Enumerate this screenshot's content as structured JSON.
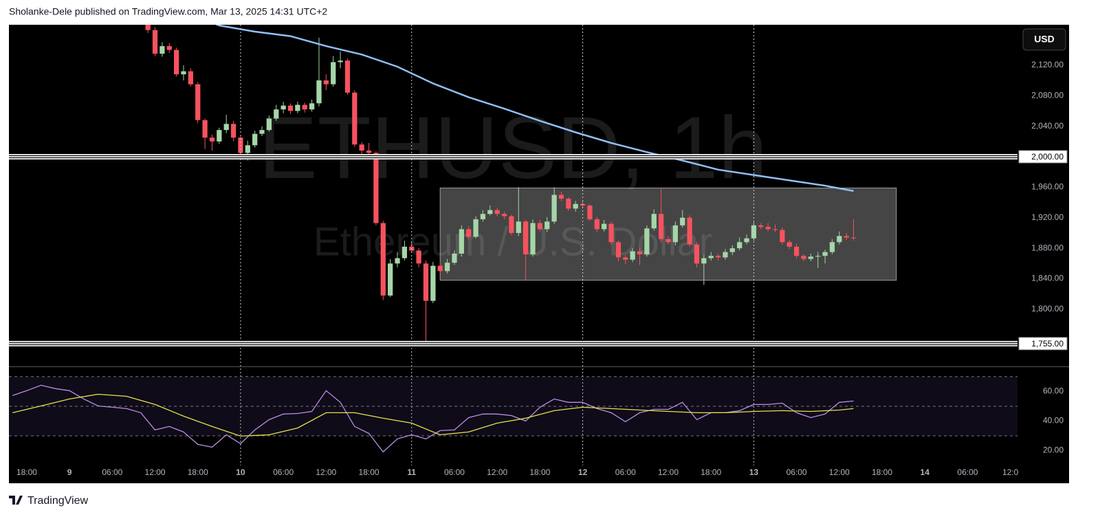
{
  "header": "Sholanke-Dele published on TradingView.com, Mar 13, 2025 14:31 UTC+2",
  "footer": "TradingView",
  "currency_button": "USD",
  "watermark": {
    "symbol": "ETHUSD, 1h",
    "description": "Ethereum / U.S. Dollar"
  },
  "chart_data": [
    {
      "type": "candlestick",
      "xlim": [
        -19.5,
        122
      ],
      "ylim": [
        1726,
        2173
      ],
      "yticks": [
        {
          "value": 1800,
          "label": "1,800.00"
        },
        {
          "value": 1840,
          "label": "1,840.00"
        },
        {
          "value": 1880,
          "label": "1,880.00"
        },
        {
          "value": 1920,
          "label": "1,920.00"
        },
        {
          "value": 1960,
          "label": "1,960.00"
        },
        {
          "value": 2040,
          "label": "2,040.00"
        },
        {
          "value": 2080,
          "label": "2,080.00"
        },
        {
          "value": 2120,
          "label": "2,120.00"
        }
      ],
      "up_color": "#a5d6a7",
      "down_color": "#f7525f",
      "open": [
        2180,
        2166,
        2135,
        2145,
        2140,
        2108,
        2112,
        2095,
        2048,
        2025,
        2020,
        2035,
        2043,
        2025,
        2005,
        2015,
        2030,
        2035,
        2050,
        2062,
        2067,
        2060,
        2068,
        2062,
        2070,
        2100,
        2095,
        2124,
        2126,
        2084,
        2016,
        2008,
        2005,
        1913,
        1818,
        1860,
        1867,
        1882,
        1877,
        1860,
        1811,
        1857,
        1850,
        1861,
        1873,
        1905,
        1895,
        1918,
        1925,
        1930,
        1925,
        1922,
        1900,
        1915,
        1872,
        1913,
        1905,
        1915,
        1950,
        1945,
        1932,
        1938,
        1936,
        1918,
        1905,
        1912,
        1888,
        1868,
        1865,
        1876,
        1872,
        1906,
        1925,
        1892,
        1888,
        1910,
        1920,
        1885,
        1860,
        1867,
        1870,
        1868,
        1875,
        1880,
        1888,
        1893,
        1910,
        1908,
        1905,
        1904,
        1888,
        1882,
        1870,
        1866,
        1869,
        1870,
        1875,
        1888,
        1896,
        1894
      ],
      "high": [
        2186,
        2170,
        2150,
        2149,
        2143,
        2120,
        2116,
        2098,
        2050,
        2029,
        2038,
        2055,
        2047,
        2027,
        2021,
        2034,
        2040,
        2054,
        2068,
        2072,
        2070,
        2072,
        2071,
        2075,
        2156,
        2108,
        2132,
        2138,
        2129,
        2087,
        2019,
        2018,
        2007,
        1916,
        1866,
        1875,
        1890,
        1888,
        1880,
        1864,
        1862,
        1861,
        1866,
        1877,
        1910,
        1909,
        1922,
        1930,
        1936,
        1933,
        1928,
        1924,
        1960,
        1917,
        1918,
        1917,
        1921,
        1960,
        1954,
        1947,
        1942,
        1943,
        1938,
        1921,
        1917,
        1915,
        1890,
        1871,
        1880,
        1881,
        1910,
        1931,
        1958,
        1896,
        1915,
        1930,
        1923,
        1888,
        1871,
        1875,
        1873,
        1879,
        1884,
        1894,
        1898,
        1914,
        1913,
        1913,
        1911,
        1907,
        1891,
        1886,
        1872,
        1873,
        1875,
        1878,
        1892,
        1902,
        1900,
        1918
      ],
      "low": [
        2162,
        2132,
        2131,
        2136,
        2105,
        2100,
        2092,
        2044,
        2010,
        2008,
        2017,
        2031,
        2020,
        2002,
        1995,
        2012,
        2027,
        2033,
        2047,
        2057,
        2056,
        2057,
        2058,
        2059,
        2066,
        2087,
        2092,
        2116,
        2081,
        2013,
        1998,
        2000,
        1910,
        1812,
        1816,
        1855,
        1864,
        1874,
        1855,
        1755,
        1808,
        1845,
        1847,
        1858,
        1869,
        1892,
        1893,
        1915,
        1923,
        1922,
        1918,
        1897,
        1896,
        1838,
        1869,
        1902,
        1901,
        1912,
        1942,
        1929,
        1928,
        1933,
        1916,
        1901,
        1902,
        1885,
        1863,
        1859,
        1862,
        1858,
        1869,
        1903,
        1888,
        1885,
        1884,
        1907,
        1882,
        1855,
        1832,
        1864,
        1864,
        1865,
        1871,
        1877,
        1885,
        1890,
        1905,
        1902,
        1901,
        1885,
        1879,
        1867,
        1863,
        1863,
        1854,
        1860,
        1872,
        1885,
        1891,
        1890
      ],
      "close": [
        2166,
        2135,
        2145,
        2140,
        2108,
        2112,
        2095,
        2048,
        2025,
        2020,
        2035,
        2043,
        2025,
        2005,
        2015,
        2030,
        2035,
        2050,
        2062,
        2067,
        2060,
        2068,
        2062,
        2070,
        2100,
        2095,
        2124,
        2126,
        2084,
        2016,
        2008,
        2005,
        1913,
        1818,
        1860,
        1867,
        1882,
        1877,
        1860,
        1811,
        1857,
        1850,
        1861,
        1873,
        1905,
        1895,
        1918,
        1925,
        1930,
        1925,
        1922,
        1900,
        1915,
        1872,
        1913,
        1905,
        1915,
        1950,
        1945,
        1932,
        1938,
        1936,
        1918,
        1905,
        1912,
        1888,
        1868,
        1865,
        1876,
        1872,
        1906,
        1925,
        1892,
        1888,
        1910,
        1920,
        1885,
        1860,
        1867,
        1870,
        1868,
        1875,
        1880,
        1888,
        1893,
        1910,
        1908,
        1905,
        1904,
        1888,
        1882,
        1870,
        1866,
        1869,
        1870,
        1875,
        1888,
        1896,
        1894,
        1893
      ],
      "ma": {
        "color": "#90bff9",
        "x": [
          8,
          10,
          15,
          20,
          25,
          30,
          35,
          40,
          45,
          50,
          55,
          60,
          65,
          70,
          75,
          80,
          85,
          90,
          95,
          99
        ],
        "values": [
          2180,
          2172,
          2164,
          2158,
          2145,
          2134,
          2118,
          2096,
          2078,
          2063,
          2047,
          2032,
          2018,
          2006,
          1995,
          1983,
          1976,
          1969,
          1962,
          1955
        ]
      },
      "hlines": [
        {
          "value": 2000,
          "label": "2,000.00"
        },
        {
          "value": 1755,
          "label": "1,755.00"
        }
      ],
      "box": {
        "x": [
          41,
          105
        ],
        "y": [
          1838,
          1959
        ]
      },
      "day_separators": [
        13,
        37,
        61,
        85
      ]
    },
    {
      "type": "line",
      "xlim": [
        -19.5,
        122
      ],
      "ylim": [
        10,
        76
      ],
      "yticks": [
        {
          "value": 20,
          "label": "20.00"
        },
        {
          "value": 40,
          "label": "40.00"
        },
        {
          "value": 60,
          "label": "60.00"
        }
      ],
      "levels": [
        30,
        50,
        70
      ],
      "xticks": [
        {
          "value": -17,
          "label": "18:00"
        },
        {
          "value": -11,
          "label": "9"
        },
        {
          "value": -5,
          "label": "06:00"
        },
        {
          "value": 1,
          "label": "12:00"
        },
        {
          "value": 7,
          "label": "18:00"
        },
        {
          "value": 13,
          "label": "10"
        },
        {
          "value": 19,
          "label": "06:00"
        },
        {
          "value": 25,
          "label": "12:00"
        },
        {
          "value": 31,
          "label": "18:00"
        },
        {
          "value": 37,
          "label": "11"
        },
        {
          "value": 43,
          "label": "06:00"
        },
        {
          "value": 49,
          "label": "12:00"
        },
        {
          "value": 55,
          "label": "18:00"
        },
        {
          "value": 61,
          "label": "12"
        },
        {
          "value": 67,
          "label": "06:00"
        },
        {
          "value": 73,
          "label": "12:00"
        },
        {
          "value": 79,
          "label": "18:00"
        },
        {
          "value": 85,
          "label": "13"
        },
        {
          "value": 91,
          "label": "06:00"
        },
        {
          "value": 97,
          "label": "12:00"
        },
        {
          "value": 103,
          "label": "18:00"
        },
        {
          "value": 109,
          "label": "14"
        },
        {
          "value": 115,
          "label": "06:00"
        },
        {
          "value": 121,
          "label": "12:0"
        }
      ],
      "series": [
        {
          "color": "#b98ee8",
          "x": [
            -19,
            -17,
            -15,
            -13,
            -11,
            -9,
            -7,
            -5,
            -3,
            -1,
            1,
            3,
            5,
            7,
            9,
            11,
            13,
            15,
            17,
            19,
            21,
            23,
            25,
            27,
            29,
            31,
            33,
            35,
            37,
            39,
            41,
            43,
            45,
            47,
            49,
            51,
            53,
            55,
            57,
            59,
            61,
            63,
            65,
            67,
            69,
            71,
            73,
            75,
            77,
            79,
            81,
            83,
            85,
            87,
            89,
            91,
            93,
            95,
            97,
            99
          ],
          "values": [
            57.2,
            60.5,
            64.2,
            61.9,
            60.5,
            54.9,
            50.2,
            49.3,
            48.4,
            45.6,
            34.0,
            36.3,
            32.6,
            24.2,
            22.3,
            30.7,
            24.7,
            34.0,
            40.9,
            44.7,
            45.1,
            46.5,
            60.5,
            52.6,
            36.3,
            31.6,
            19.1,
            27.9,
            30.7,
            27.9,
            33.5,
            34.0,
            42.3,
            44.7,
            44.7,
            43.7,
            40.0,
            49.3,
            54.9,
            52.6,
            52.6,
            48.4,
            45.6,
            39.5,
            45.6,
            47.9,
            47.9,
            52.6,
            40.9,
            45.6,
            45.6,
            47.0,
            51.2,
            51.2,
            52.1,
            45.6,
            42.3,
            44.7,
            52.6,
            53.5
          ]
        },
        {
          "color": "#e8e34a",
          "x": [
            -19,
            -15,
            -11,
            -7,
            -3,
            1,
            5,
            9,
            13,
            17,
            21,
            25,
            29,
            33,
            37,
            41,
            45,
            49,
            53,
            57,
            61,
            65,
            69,
            73,
            77,
            81,
            85,
            89,
            93,
            97,
            99
          ],
          "values": [
            45.6,
            50.2,
            54.9,
            58.1,
            56.7,
            51.2,
            43.3,
            36.3,
            29.8,
            30.7,
            35.3,
            45.6,
            45.6,
            41.9,
            38.6,
            30.7,
            32.6,
            38.6,
            41.9,
            47.0,
            49.3,
            48.4,
            47.4,
            46.5,
            45.6,
            45.6,
            46.5,
            47.0,
            46.5,
            47.4,
            48.4
          ]
        }
      ]
    }
  ]
}
